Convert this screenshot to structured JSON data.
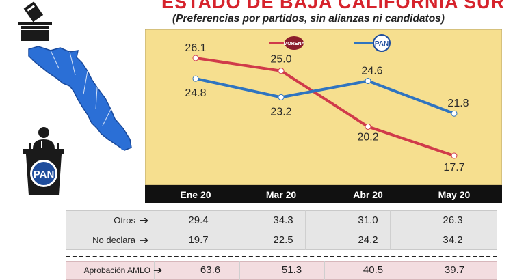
{
  "header": {
    "title": "ESTADO DE BAJA CALIFORNIA SUR",
    "subtitle": "(Preferencias por partidos, sin alianzas ni candidatos)"
  },
  "icons": {
    "ballot": "ballot-box-icon",
    "map": "baja-california-sur-map-icon",
    "podium": "pan-podium-icon",
    "pan_logo_text": "PAN",
    "morena_logo_text": "MORENA"
  },
  "colors": {
    "morena": "#d03a4a",
    "pan": "#2f74c0",
    "plot_bg": "#f6df8f",
    "axis_bar": "#111111",
    "title": "#d6232c"
  },
  "chart_data": {
    "type": "line",
    "categories": [
      "Ene 20",
      "Mar 20",
      "Abr 20",
      "May 20"
    ],
    "series": [
      {
        "name": "MORENA",
        "values": [
          26.1,
          25.0,
          20.2,
          17.7
        ]
      },
      {
        "name": "PAN",
        "values": [
          24.8,
          23.2,
          24.6,
          21.8
        ]
      }
    ],
    "grid": false,
    "legend": "top"
  },
  "table": {
    "rows": [
      {
        "label": "Otros",
        "values": [
          "29.4",
          "34.3",
          "31.0",
          "26.3"
        ]
      },
      {
        "label": "No declara",
        "values": [
          "19.7",
          "22.5",
          "24.2",
          "34.2"
        ]
      }
    ],
    "amlo": {
      "label": "Aprobación AMLO",
      "values": [
        "63.6",
        "51.3",
        "40.5",
        "39.7"
      ]
    }
  }
}
